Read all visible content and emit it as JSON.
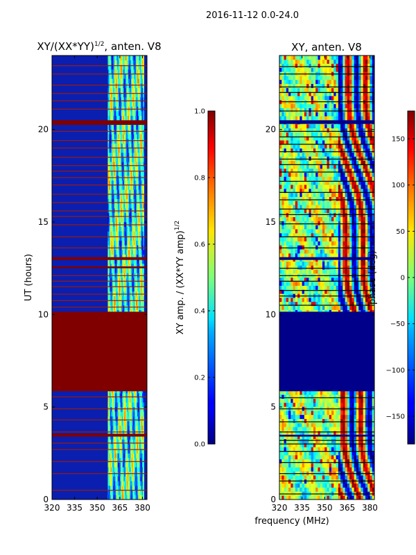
{
  "suptitle": "2016-11-12 0.0-24.0",
  "colors": {
    "flag_left": "#800000",
    "flag_right": "#00008a",
    "bg_left": "#0a1fb0",
    "grid_line_left": "#9e1a0a",
    "grid_line_right": "#000000",
    "background": "#ffffff"
  },
  "chart_data": [
    {
      "type": "heatmap",
      "title_main": "XY/(XX*YY)",
      "title_sup": "1/2",
      "title_suffix": ", anten. V8",
      "xlabel": "",
      "ylabel": "UT (hours)",
      "x_ticks": [
        320,
        335,
        350,
        365,
        380
      ],
      "x_tick_labels": [
        "320",
        "335",
        "350",
        "365",
        "380"
      ],
      "xlim": [
        320,
        383
      ],
      "y_ticks": [
        0,
        5,
        10,
        15,
        20
      ],
      "y_tick_labels": [
        "0",
        "5",
        "10",
        "15",
        "20"
      ],
      "ylim": [
        0,
        24
      ],
      "flagged_hours": [
        [
          5.85,
          10.15
        ],
        [
          20.25,
          20.5
        ],
        [
          12.95,
          13.1
        ],
        [
          12.5,
          12.6
        ],
        [
          3.4,
          3.55
        ]
      ],
      "thin_flag_hours": [
        0.5,
        1.4,
        2.05,
        2.7,
        3.05,
        3.65,
        4.3,
        4.9,
        5.55,
        10.4,
        10.75,
        11.1,
        11.5,
        11.8,
        12.1,
        13.6,
        14.2,
        14.85,
        15.3,
        15.6,
        16.05,
        16.5,
        17.0,
        17.4,
        17.75,
        18.05,
        18.5,
        19.0,
        19.4,
        19.9,
        21.1,
        21.55,
        21.95,
        22.4,
        23.0,
        23.45
      ],
      "active_band_mhz": [
        357,
        381
      ],
      "colorbar": {
        "label_main": "XY amp. / (XX*YY amp)",
        "label_sup": "1/2",
        "range": [
          0.0,
          1.0
        ],
        "ticks": [
          0.0,
          0.2,
          0.4,
          0.6,
          0.8,
          1.0
        ],
        "tick_labels": [
          "0.0",
          "0.2",
          "0.4",
          "0.6",
          "0.8",
          "1.0"
        ],
        "colormap": "jet"
      }
    },
    {
      "type": "heatmap",
      "title": "XY, anten. V8",
      "xlabel": "frequency (MHz)",
      "ylabel": "",
      "x_ticks": [
        320,
        335,
        350,
        365,
        380
      ],
      "x_tick_labels": [
        "320",
        "335",
        "350",
        "365",
        "380"
      ],
      "xlim": [
        320,
        383
      ],
      "y_ticks": [
        0,
        5,
        10,
        15,
        20
      ],
      "y_tick_labels": [
        "0",
        "5",
        "10",
        "15",
        "20"
      ],
      "ylim": [
        0,
        24
      ],
      "flagged_hours": [
        [
          5.85,
          10.15
        ],
        [
          20.3,
          20.5
        ],
        [
          12.95,
          13.1
        ],
        [
          3.4,
          3.5
        ]
      ],
      "thin_flag_hours": [
        0.3,
        1.0,
        1.4,
        2.0,
        2.6,
        3.0,
        3.2,
        3.65,
        4.2,
        4.9,
        5.5,
        10.5,
        11.0,
        11.3,
        11.8,
        12.1,
        12.5,
        13.6,
        14.2,
        14.9,
        15.4,
        15.7,
        16.2,
        16.6,
        17.2,
        17.7,
        18.1,
        18.4,
        18.8,
        19.2,
        19.6,
        19.9,
        21.0,
        21.5,
        22.0,
        22.3,
        23.0,
        23.4
      ],
      "phase_break_mhz": 358,
      "colorbar": {
        "label": "phase (deg)",
        "range": [
          -180,
          180
        ],
        "ticks": [
          -150,
          -100,
          -50,
          0,
          50,
          100,
          150
        ],
        "tick_labels": [
          "−150",
          "−100",
          "−50",
          "0",
          "50",
          "100",
          "150"
        ],
        "colormap": "jet"
      }
    }
  ]
}
